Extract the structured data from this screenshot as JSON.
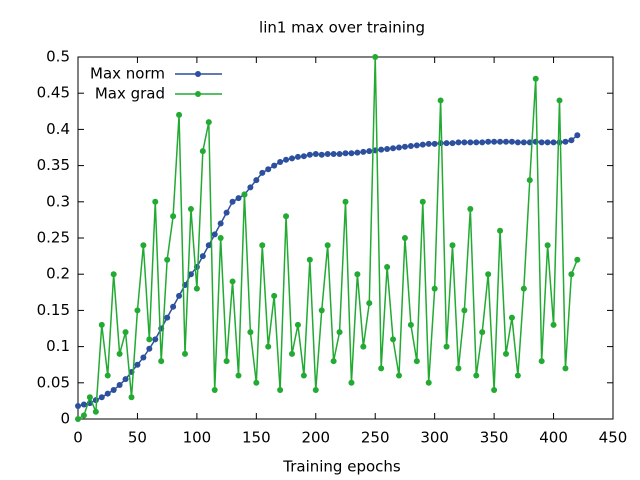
{
  "chart_data": {
    "type": "line",
    "title": "lin1 max over training",
    "x_label": "Training epochs",
    "x": [
      0,
      5,
      10,
      15,
      20,
      25,
      30,
      35,
      40,
      45,
      50,
      55,
      60,
      65,
      70,
      75,
      80,
      85,
      90,
      95,
      100,
      105,
      110,
      115,
      120,
      125,
      130,
      135,
      140,
      145,
      150,
      155,
      160,
      165,
      170,
      175,
      180,
      185,
      190,
      195,
      200,
      205,
      210,
      215,
      220,
      225,
      230,
      235,
      240,
      245,
      250,
      255,
      260,
      265,
      270,
      275,
      280,
      285,
      290,
      295,
      300,
      305,
      310,
      315,
      320,
      325,
      330,
      335,
      340,
      345,
      350,
      355,
      360,
      365,
      370,
      375,
      380,
      385,
      390,
      395,
      400,
      405,
      410,
      415,
      420
    ],
    "series": [
      {
        "name": "Max norm",
        "color": "#2c4f9e",
        "values": [
          0.018,
          0.02,
          0.022,
          0.026,
          0.03,
          0.035,
          0.04,
          0.047,
          0.055,
          0.065,
          0.075,
          0.085,
          0.097,
          0.11,
          0.125,
          0.14,
          0.155,
          0.17,
          0.185,
          0.2,
          0.21,
          0.225,
          0.24,
          0.255,
          0.27,
          0.285,
          0.3,
          0.305,
          0.31,
          0.32,
          0.33,
          0.34,
          0.345,
          0.35,
          0.355,
          0.358,
          0.36,
          0.362,
          0.363,
          0.365,
          0.366,
          0.365,
          0.366,
          0.366,
          0.366,
          0.367,
          0.367,
          0.368,
          0.369,
          0.37,
          0.371,
          0.372,
          0.373,
          0.374,
          0.375,
          0.376,
          0.377,
          0.378,
          0.379,
          0.38,
          0.38,
          0.381,
          0.381,
          0.381,
          0.382,
          0.382,
          0.382,
          0.382,
          0.382,
          0.383,
          0.383,
          0.383,
          0.383,
          0.383,
          0.382,
          0.382,
          0.382,
          0.383,
          0.382,
          0.382,
          0.382,
          0.382,
          0.383,
          0.385,
          0.392
        ]
      },
      {
        "name": "Max grad",
        "color": "#22aa33",
        "values": [
          0,
          0.005,
          0.03,
          0.01,
          0.13,
          0.06,
          0.2,
          0.09,
          0.12,
          0.03,
          0.15,
          0.24,
          0.11,
          0.3,
          0.08,
          0.22,
          0.28,
          0.42,
          0.09,
          0.29,
          0.18,
          0.37,
          0.41,
          0.04,
          0.25,
          0.08,
          0.19,
          0.06,
          0.31,
          0.12,
          0.05,
          0.24,
          0.1,
          0.17,
          0.04,
          0.28,
          0.09,
          0.13,
          0.06,
          0.22,
          0.04,
          0.15,
          0.24,
          0.08,
          0.12,
          0.3,
          0.05,
          0.2,
          0.1,
          0.16,
          0.5,
          0.07,
          0.21,
          0.11,
          0.06,
          0.25,
          0.13,
          0.08,
          0.3,
          0.05,
          0.18,
          0.44,
          0.1,
          0.24,
          0.07,
          0.15,
          0.29,
          0.06,
          0.12,
          0.2,
          0.04,
          0.26,
          0.09,
          0.14,
          0.06,
          0.18,
          0.33,
          0.47,
          0.08,
          0.24,
          0.13,
          0.44,
          0.07,
          0.2,
          0.22
        ]
      }
    ],
    "xlim": [
      0,
      450
    ],
    "xticks": [
      0,
      50,
      100,
      150,
      200,
      250,
      300,
      350,
      400,
      450
    ],
    "ylim": [
      0,
      0.5
    ],
    "yticks": [
      0,
      0.05,
      0.1,
      0.15,
      0.2,
      0.25,
      0.3,
      0.35,
      0.4,
      0.45,
      0.5
    ],
    "legend": "top-left",
    "grid": false
  }
}
